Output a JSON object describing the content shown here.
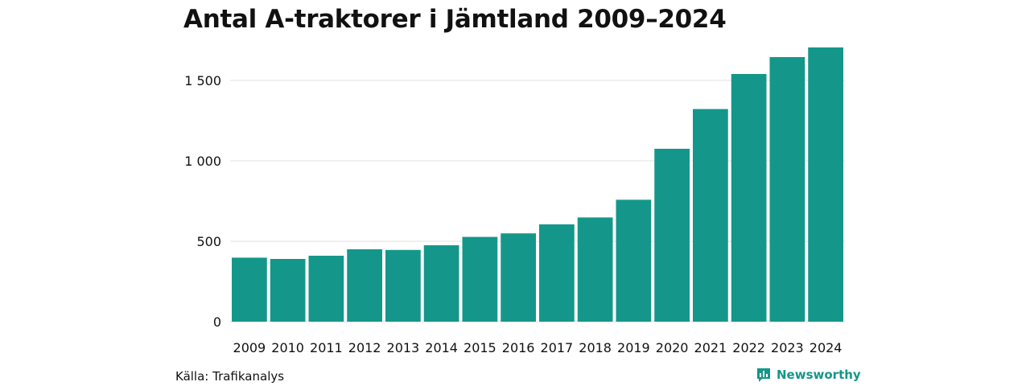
{
  "chart_data": {
    "type": "bar",
    "title": "Antal A-traktorer i Jämtland 2009–2024",
    "xlabel": "",
    "ylabel": "",
    "categories": [
      "2009",
      "2010",
      "2011",
      "2012",
      "2013",
      "2014",
      "2015",
      "2016",
      "2017",
      "2018",
      "2019",
      "2020",
      "2021",
      "2022",
      "2023",
      "2024"
    ],
    "values": [
      398,
      390,
      410,
      450,
      446,
      475,
      527,
      549,
      605,
      648,
      758,
      1075,
      1322,
      1540,
      1645,
      1705
    ],
    "ylim": [
      0,
      1750
    ],
    "yticks": [
      0,
      500,
      1000,
      1500
    ],
    "ytick_labels": [
      "0",
      "500",
      "1 000",
      "1 500"
    ],
    "grid": true,
    "bar_color": "#14978a"
  },
  "source": "Källa: Trafikanalys",
  "brand": {
    "name": "Newsworthy",
    "icon": "newsworthy-logo-icon",
    "color": "#14978a"
  }
}
